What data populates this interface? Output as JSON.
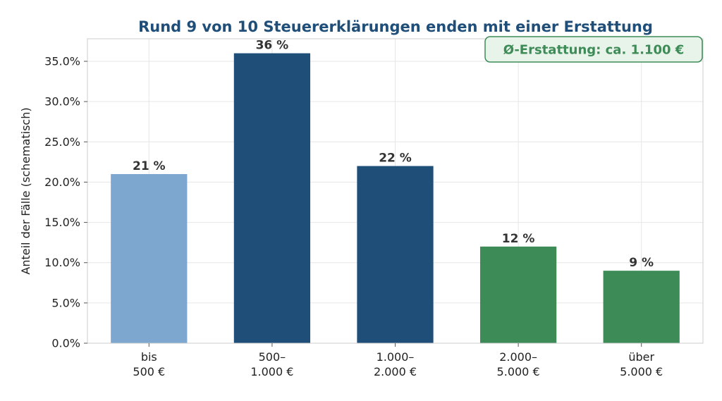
{
  "chart_data": {
    "type": "bar",
    "title": "Rund 9 von 10 Steuererklärungen enden mit einer Erstattung",
    "xlabel": "",
    "ylabel": "Anteil der Fälle (schematisch)",
    "ylim": [
      0,
      37.8
    ],
    "yticks": [
      "0.0%",
      "5.0%",
      "10.0%",
      "15.0%",
      "20.0%",
      "25.0%",
      "30.0%",
      "35.0%"
    ],
    "grid": true,
    "categories": [
      [
        "bis",
        "500 €"
      ],
      [
        "500–",
        "1.000 €"
      ],
      [
        "1.000–",
        "2.000 €"
      ],
      [
        "2.000–",
        "5.000 €"
      ],
      [
        "über",
        "5.000 €"
      ]
    ],
    "values": [
      21,
      36,
      22,
      12,
      9
    ],
    "data_labels": [
      "21 %",
      "36 %",
      "22 %",
      "12 %",
      "9 %"
    ],
    "bar_colors": [
      "#7da7cf",
      "#1f4e79",
      "#1f4e79",
      "#3d8b57",
      "#3d8b57"
    ],
    "annotation": {
      "text": "Ø-Erstattung: ca. 1.100 €",
      "placement": "top-right",
      "text_color": "#3d8b57",
      "box_fill": "#e8f4ea",
      "box_stroke": "#3d8b57"
    }
  }
}
